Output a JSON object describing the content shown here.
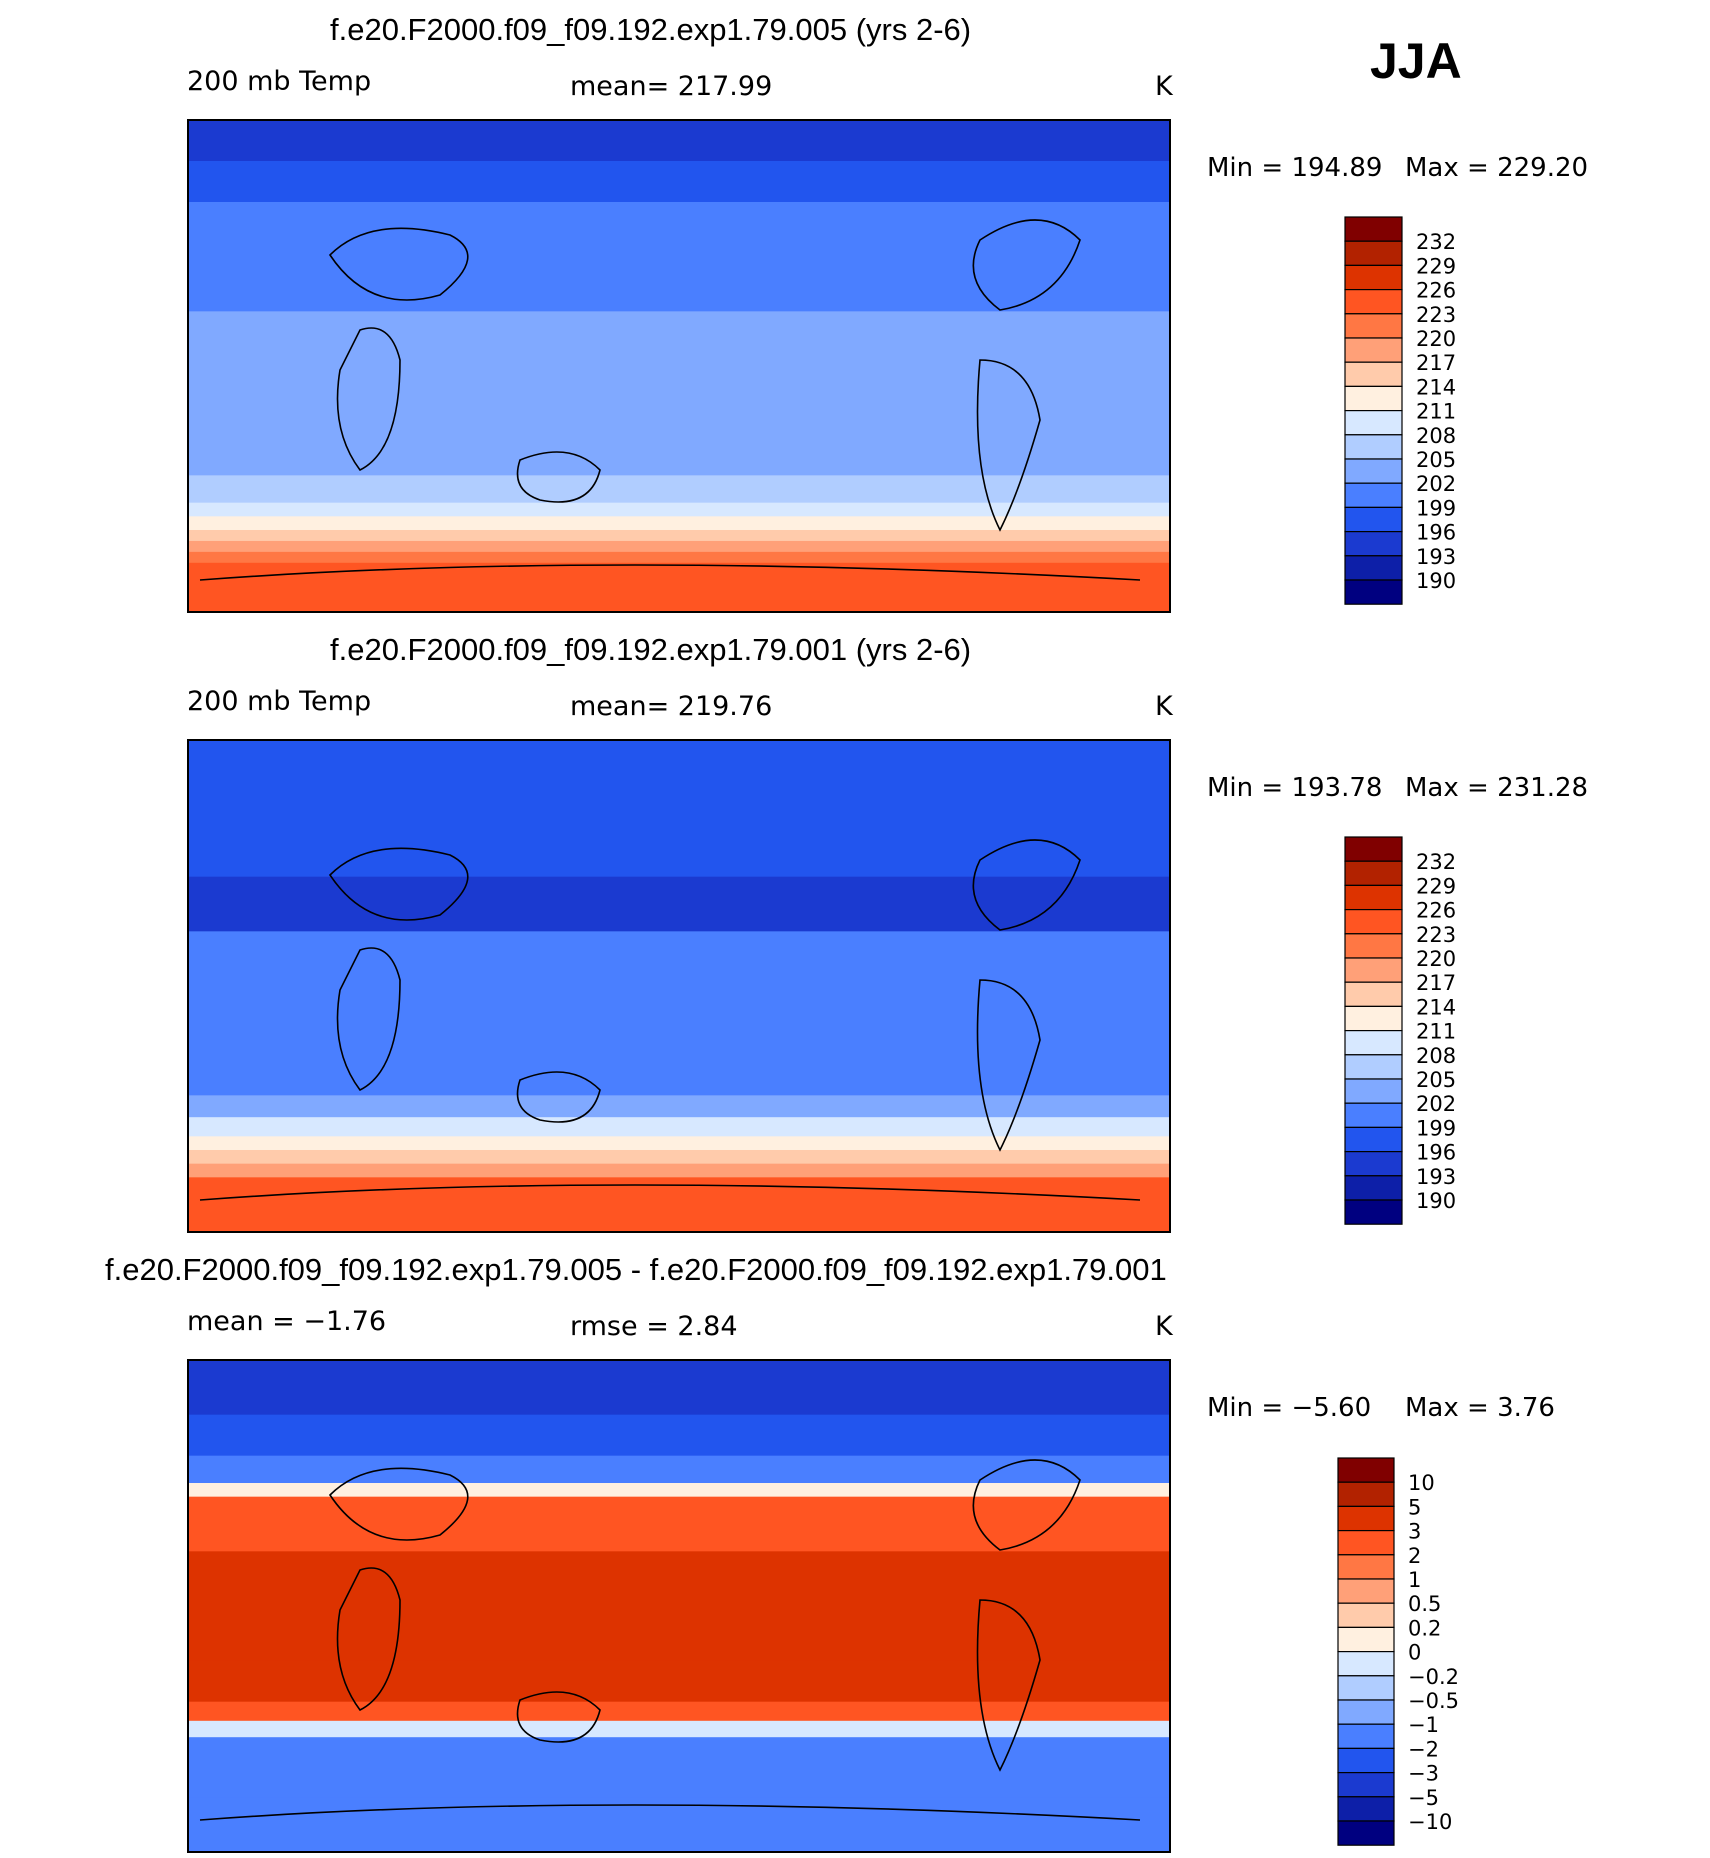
{
  "season": "JJA",
  "chart_data": [
    {
      "type": "heatmap",
      "title": "f.e20.F2000.f09_f09.192.exp1.79.005 (yrs 2-6)",
      "variable": "200 mb Temp",
      "mean_text": "mean= 217.99",
      "units": "K",
      "min_text": "Min = 194.89",
      "max_text": "Max = 229.20",
      "min": 194.89,
      "max": 229.2,
      "mean": 217.99,
      "levels": [
        "232",
        "229",
        "226",
        "223",
        "220",
        "217",
        "214",
        "211",
        "208",
        "205",
        "202",
        "199",
        "196",
        "193",
        "190"
      ],
      "colors": [
        "#800000",
        "#b22200",
        "#dd3300",
        "#ff5522",
        "#ff7744",
        "#ffa078",
        "#ffcbab",
        "#fff0e0",
        "#d7e8ff",
        "#b0cdff",
        "#80a9ff",
        "#4a7fff",
        "#2255ee",
        "#1b3ad0",
        "#0d1fa8",
        "#000080"
      ],
      "bands": [
        {
          "lat": 90,
          "level": 13
        },
        {
          "lat": 75,
          "level": 12
        },
        {
          "lat": 60,
          "level": 11
        },
        {
          "lat": 40,
          "level": 11
        },
        {
          "lat": 20,
          "level": 10
        },
        {
          "lat": 0,
          "level": 10
        },
        {
          "lat": -20,
          "level": 10
        },
        {
          "lat": -40,
          "level": 9
        },
        {
          "lat": -50,
          "level": 8
        },
        {
          "lat": -55,
          "level": 7
        },
        {
          "lat": -60,
          "level": 6
        },
        {
          "lat": -64,
          "level": 5
        },
        {
          "lat": -68,
          "level": 4
        },
        {
          "lat": -72,
          "level": 3
        },
        {
          "lat": -90,
          "level": 3
        }
      ]
    },
    {
      "type": "heatmap",
      "title": "f.e20.F2000.f09_f09.192.exp1.79.001 (yrs 2-6)",
      "variable": "200 mb Temp",
      "mean_text": "mean= 219.76",
      "units": "K",
      "min_text": "Min = 193.78",
      "max_text": "Max = 231.28",
      "min": 193.78,
      "max": 231.28,
      "mean": 219.76,
      "levels": [
        "232",
        "229",
        "226",
        "223",
        "220",
        "217",
        "214",
        "211",
        "208",
        "205",
        "202",
        "199",
        "196",
        "193",
        "190"
      ],
      "colors": [
        "#800000",
        "#b22200",
        "#dd3300",
        "#ff5522",
        "#ff7744",
        "#ffa078",
        "#ffcbab",
        "#fff0e0",
        "#d7e8ff",
        "#b0cdff",
        "#80a9ff",
        "#4a7fff",
        "#2255ee",
        "#1b3ad0",
        "#0d1fa8",
        "#000080"
      ],
      "bands": [
        {
          "lat": 90,
          "level": 12
        },
        {
          "lat": 60,
          "level": 12
        },
        {
          "lat": 40,
          "level": 13
        },
        {
          "lat": 20,
          "level": 11
        },
        {
          "lat": 0,
          "level": 11
        },
        {
          "lat": -20,
          "level": 11
        },
        {
          "lat": -40,
          "level": 10
        },
        {
          "lat": -48,
          "level": 8
        },
        {
          "lat": -55,
          "level": 7
        },
        {
          "lat": -60,
          "level": 6
        },
        {
          "lat": -65,
          "level": 5
        },
        {
          "lat": -70,
          "level": 3
        },
        {
          "lat": -90,
          "level": 3
        }
      ]
    },
    {
      "type": "heatmap",
      "title": "f.e20.F2000.f09_f09.192.exp1.79.005 - f.e20.F2000.f09_f09.192.exp1.79.001",
      "mean_text": "mean = −1.76",
      "rmse_text": "rmse = 2.84",
      "units": "K",
      "min_text": "Min = −5.60",
      "max_text": "Max = 3.76",
      "min": -5.6,
      "max": 3.76,
      "mean": -1.76,
      "rmse": 2.84,
      "levels": [
        "10",
        "5",
        "3",
        "2",
        "1",
        "0.5",
        "0.2",
        "0",
        "−0.2",
        "−0.5",
        "−1",
        "−2",
        "−3",
        "−5",
        "−10"
      ],
      "colors": [
        "#800000",
        "#b22200",
        "#dd3300",
        "#ff5522",
        "#ff7744",
        "#ffa078",
        "#ffcbab",
        "#fff0e0",
        "#d7e8ff",
        "#b0cdff",
        "#80a9ff",
        "#4a7fff",
        "#2255ee",
        "#1b3ad0",
        "#0d1fa8",
        "#000080"
      ],
      "bands": [
        {
          "lat": 90,
          "level": 13
        },
        {
          "lat": 70,
          "level": 12
        },
        {
          "lat": 55,
          "level": 11
        },
        {
          "lat": 45,
          "level": 7
        },
        {
          "lat": 40,
          "level": 3
        },
        {
          "lat": 20,
          "level": 2
        },
        {
          "lat": -20,
          "level": 2
        },
        {
          "lat": -35,
          "level": 3
        },
        {
          "lat": -42,
          "level": 8
        },
        {
          "lat": -48,
          "level": 11
        },
        {
          "lat": -70,
          "level": 11
        },
        {
          "lat": -90,
          "level": 12
        }
      ]
    }
  ]
}
